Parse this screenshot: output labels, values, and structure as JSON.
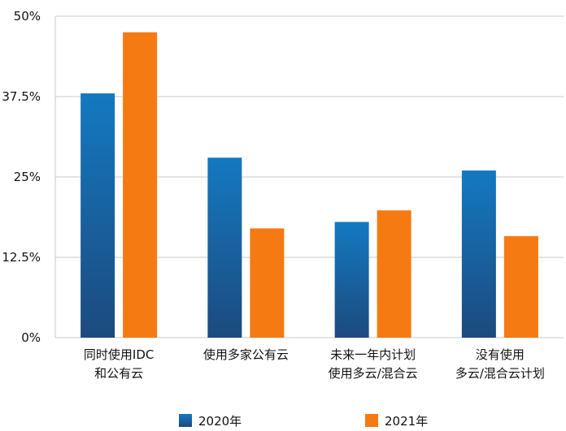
{
  "chart_data": {
    "type": "bar",
    "categories": [
      [
        "同时使用IDC",
        "和公有云"
      ],
      [
        "使用多家公有云"
      ],
      [
        "未来一年内计划",
        "使用多云/混合云"
      ],
      [
        "没有使用",
        "多云/混合云计划"
      ]
    ],
    "series": [
      {
        "name": "2020年",
        "values": [
          38,
          28,
          18,
          26
        ],
        "color_top": "#1479C1",
        "color_bottom": "#1C4A7E"
      },
      {
        "name": "2021年",
        "values": [
          47.5,
          17,
          19.8,
          15.8
        ],
        "color": "#F57A12"
      }
    ],
    "yticks": [
      0,
      12.5,
      25,
      37.5,
      50
    ],
    "ytick_labels": [
      "0%",
      "12.5%",
      "25%",
      "37.5%",
      "50%"
    ],
    "ylim": [
      0,
      50
    ],
    "grid": true,
    "legend_position": "bottom"
  }
}
